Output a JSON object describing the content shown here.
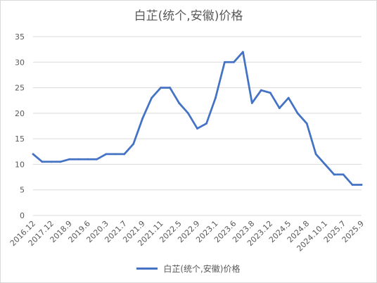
{
  "chart_data": {
    "type": "line",
    "title": "白芷(统个,安徽)价格",
    "xlabel": "",
    "ylabel": "",
    "ylim": [
      0,
      35
    ],
    "yticks": [
      0,
      5,
      10,
      15,
      20,
      25,
      30,
      35
    ],
    "grid": true,
    "legend_position": "bottom",
    "color": "#4472c4",
    "x_tick_labels": [
      "2016.12",
      "2017.12",
      "2018.9",
      "2019.6",
      "2020.3",
      "2021.7",
      "2021.9",
      "2021.11",
      "2022.5",
      "2022.9",
      "2023.1",
      "2023.6",
      "2023.8",
      "2023.12",
      "2024.5",
      "2024.8",
      "2024.10.1",
      "2025.7",
      "2025.9"
    ],
    "series": [
      {
        "name": "白芷(统个,安徽)价格",
        "values": [
          12,
          10.5,
          10.5,
          10.5,
          11,
          11,
          11,
          11,
          12,
          12,
          12,
          14,
          19,
          23,
          25,
          25,
          22,
          20,
          17,
          18,
          23,
          30,
          30,
          32,
          22,
          24.5,
          24,
          21,
          23,
          20,
          18,
          12,
          10,
          8,
          8,
          6,
          6
        ]
      }
    ]
  }
}
